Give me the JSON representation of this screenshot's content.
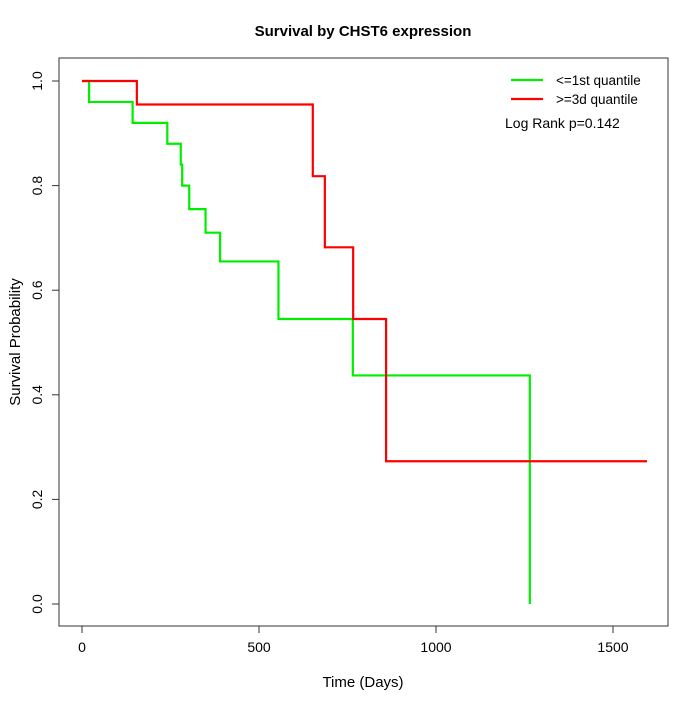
{
  "title": "Survival by CHST6 expression",
  "annotation": {
    "log_rank": "Log Rank p=0.142"
  },
  "legend": [
    {
      "label": "<=1st quantile",
      "color": "#00ee00"
    },
    {
      "label": ">=3d quantile",
      "color": "#ff0000"
    }
  ],
  "chart_data": {
    "type": "line",
    "subtype": "kaplan-meier-step",
    "title": "Survival by CHST6 expression",
    "xlabel": "Time (Days)",
    "ylabel": "Survival Probability",
    "xlim": [
      0,
      1600
    ],
    "ylim": [
      0.0,
      1.0
    ],
    "x_ticks": [
      0,
      500,
      1000,
      1500
    ],
    "y_ticks": [
      0.0,
      0.2,
      0.4,
      0.6,
      0.8,
      1.0
    ],
    "grid": false,
    "legend_position": "topright",
    "annotation": "Log Rank p=0.142",
    "series": [
      {
        "name": "<=1st quantile",
        "color": "#00ee00",
        "steps": [
          [
            0,
            1.0
          ],
          [
            20,
            0.96
          ],
          [
            143,
            0.92
          ],
          [
            241,
            0.88
          ],
          [
            279,
            0.84
          ],
          [
            283,
            0.8
          ],
          [
            303,
            0.755
          ],
          [
            349,
            0.71
          ],
          [
            390,
            0.655
          ],
          [
            555,
            0.545
          ],
          [
            765,
            0.437
          ],
          [
            1265,
            0.0
          ]
        ],
        "end_time": 1265
      },
      {
        "name": ">=3d quantile",
        "color": "#ff0000",
        "steps": [
          [
            0,
            1.0
          ],
          [
            155,
            0.955
          ],
          [
            652,
            0.818
          ],
          [
            686,
            0.682
          ],
          [
            766,
            0.545
          ],
          [
            859,
            0.273
          ]
        ],
        "end_time": 1596
      }
    ]
  }
}
